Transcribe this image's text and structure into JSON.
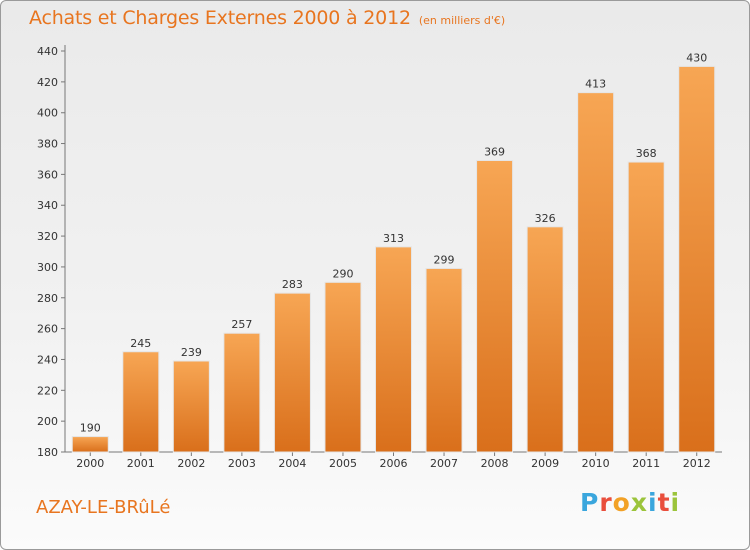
{
  "chart_data": {
    "type": "bar",
    "title": "Achats et Charges Externes 2000 à 2012",
    "subtitle": "(en milliers d'€)",
    "categories": [
      "2000",
      "2001",
      "2002",
      "2003",
      "2004",
      "2005",
      "2006",
      "2007",
      "2008",
      "2009",
      "2010",
      "2011",
      "2012"
    ],
    "values": [
      190,
      245,
      239,
      257,
      283,
      290,
      313,
      299,
      369,
      326,
      413,
      368,
      430
    ],
    "ylim": [
      180,
      440
    ],
    "yticks": [
      180,
      200,
      220,
      240,
      260,
      280,
      300,
      320,
      340,
      360,
      380,
      400,
      420,
      440
    ],
    "grid": false,
    "legend": "none",
    "bar_color": "#f08c33"
  },
  "footer": {
    "place": "AZAY-LE-BRûLé",
    "brand": {
      "letters": [
        "P",
        "r",
        "o",
        "x",
        "i",
        "t",
        "i"
      ]
    }
  },
  "colors": {
    "title": "#e8751f",
    "bar_light": "#f7a654",
    "bar_dark": "#d96f1b"
  }
}
